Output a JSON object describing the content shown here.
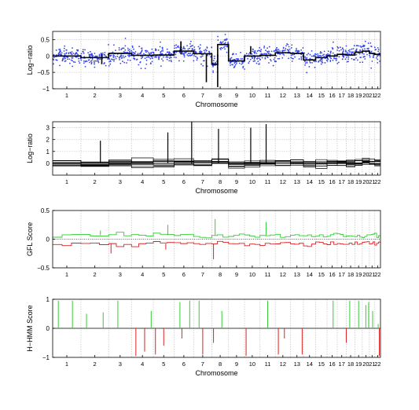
{
  "chart_data": [
    {
      "type": "scatter",
      "ylabel": "Log−ratio",
      "xlabel": "Chromosome",
      "ylim": [
        -1,
        0.75
      ],
      "yticks": [
        -1,
        -0.5,
        0,
        0.5
      ],
      "ytick_labels": [
        "−1",
        "−0.5",
        "0",
        "0.5"
      ],
      "grid": "dotted vertical boundaries and horizontal gridlines",
      "series": [
        {
          "type": "scatter",
          "color": "#3344ee",
          "values_approx": "blue probe points scattered around segment means with spread of about 0.15"
        },
        {
          "type": "step-line",
          "color": "#000000",
          "segments": [
            {
              "chr": 1,
              "level": 0.0
            },
            {
              "chr": 2,
              "level": -0.05
            },
            {
              "chr": 3,
              "level": 0.08
            },
            {
              "chr": 4,
              "level": 0.02
            },
            {
              "chr": 5,
              "level": 0.03
            },
            {
              "chr": 6,
              "level": 0.15
            },
            {
              "chr": 7,
              "level": 0.07
            },
            {
              "chr": 8,
              "level": 0.35
            },
            {
              "chr": 9,
              "level": -0.15
            },
            {
              "chr": 10,
              "level": 0.0
            },
            {
              "chr": 11,
              "level": 0.02
            },
            {
              "chr": 12,
              "level": 0.1
            },
            {
              "chr": 13,
              "level": 0.08
            },
            {
              "chr": 14,
              "level": -0.12
            },
            {
              "chr": 15,
              "level": -0.05
            },
            {
              "chr": 16,
              "level": 0.0
            },
            {
              "chr": 17,
              "level": 0.05
            },
            {
              "chr": 18,
              "level": 0.03
            },
            {
              "chr": 19,
              "level": 0.12
            },
            {
              "chr": 20,
              "level": 0.15
            },
            {
              "chr": 21,
              "level": 0.08
            },
            {
              "chr": 22,
              "level": 0.05
            }
          ]
        }
      ]
    },
    {
      "type": "line",
      "ylabel": "Log−ratio",
      "xlabel": "Chromosome",
      "ylim": [
        -1,
        3.5
      ],
      "yticks": [
        0,
        1,
        2,
        3
      ],
      "ytick_labels": [
        "0",
        "1",
        "2",
        "3"
      ],
      "series": [
        {
          "type": "overlaid-step-lines",
          "color": "#000000",
          "count": 10,
          "spikes": [
            {
              "chr": 2.7,
              "value": 1.9
            },
            {
              "chr": 5.7,
              "value": 2.6
            },
            {
              "chr": 6.9,
              "value": 3.5
            },
            {
              "chr": 8.4,
              "value": 2.9
            },
            {
              "chr": 10.4,
              "value": 3.0
            },
            {
              "chr": 11.4,
              "value": 3.3
            }
          ]
        }
      ]
    },
    {
      "type": "line",
      "ylabel": "GFL Score",
      "ylim": [
        -0.5,
        0.5
      ],
      "yticks": [
        -0.5,
        0,
        0.5
      ],
      "ytick_labels": [
        "−0.5",
        "0",
        "0.5"
      ],
      "series": [
        {
          "color": "#33cc33",
          "level": 0.07
        },
        {
          "color": "#dd2222",
          "level": -0.08
        }
      ]
    },
    {
      "type": "bar",
      "ylabel": "H−HMM Score",
      "xlabel": "Chromosome",
      "ylim": [
        -1,
        1
      ],
      "yticks": [
        -1,
        0,
        1
      ],
      "ytick_labels": [
        "−1",
        "0",
        "1"
      ],
      "series": [
        {
          "color": "#33cc33",
          "sign": "positive",
          "peaks": [
            {
              "chr": 0.2,
              "value": 0.95
            },
            {
              "chr": 0.7,
              "value": 0.95
            },
            {
              "chr": 1.2,
              "value": 0.5
            },
            {
              "chr": 1.8,
              "value": 0.55
            },
            {
              "chr": 2.4,
              "value": 0.95
            },
            {
              "chr": 3.9,
              "value": 0.6
            },
            {
              "chr": 5.3,
              "value": 0.9
            },
            {
              "chr": 5.8,
              "value": 0.95
            },
            {
              "chr": 6.3,
              "value": 0.95
            },
            {
              "chr": 7.6,
              "value": 0.6
            },
            {
              "chr": 10.5,
              "value": 0.95
            },
            {
              "chr": 15.6,
              "value": 0.95
            },
            {
              "chr": 17.4,
              "value": 0.95
            },
            {
              "chr": 18.5,
              "value": 0.95
            },
            {
              "chr": 19.5,
              "value": 0.8
            },
            {
              "chr": 19.9,
              "value": 0.9
            },
            {
              "chr": 20.6,
              "value": 0.6
            },
            {
              "chr": 21.6,
              "value": 0.15
            }
          ]
        },
        {
          "color": "#dd2222",
          "sign": "negative",
          "peaks": [
            {
              "chr": 3.2,
              "value": -0.95
            },
            {
              "chr": 3.6,
              "value": -0.8
            },
            {
              "chr": 4.1,
              "value": -0.9
            },
            {
              "chr": 4.5,
              "value": -0.6
            },
            {
              "chr": 5.4,
              "value": -0.35
            },
            {
              "chr": 6.5,
              "value": -0.9
            },
            {
              "chr": 7.1,
              "value": -0.5
            },
            {
              "chr": 9.1,
              "value": -0.95
            },
            {
              "chr": 11.2,
              "value": -0.9
            },
            {
              "chr": 11.6,
              "value": -0.35
            },
            {
              "chr": 12.9,
              "value": -0.9
            },
            {
              "chr": 17.0,
              "value": -0.5
            },
            {
              "chr": 21.8,
              "value": -0.95
            }
          ]
        }
      ]
    }
  ],
  "chromosome_labels": [
    "1",
    "2",
    "3",
    "4",
    "5",
    "6",
    "7",
    "8",
    "9",
    "10",
    "11",
    "12",
    "13",
    "14",
    "15",
    "16",
    "17",
    "18",
    "19",
    "20",
    "21",
    "22"
  ],
  "chromosome_lengths": [
    247,
    243,
    199,
    191,
    181,
    171,
    159,
    146,
    140,
    135,
    134,
    132,
    114,
    106,
    100,
    89,
    79,
    76,
    64,
    62,
    47,
    50
  ],
  "colors": {
    "probes": "#3344ee",
    "gain": "#33cc33",
    "loss": "#dd2222",
    "segments": "#000000"
  }
}
